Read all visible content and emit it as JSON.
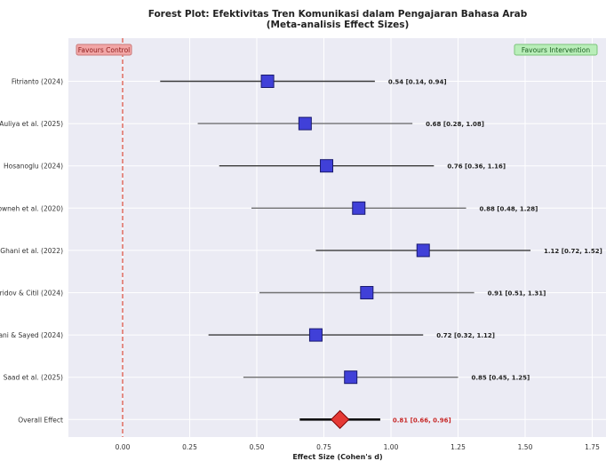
{
  "chart_data": {
    "type": "forest",
    "title": "Forest Plot: Efektivitas Tren Komunikasi dalam Pengajaran Bahasa Arab",
    "subtitle": "(Meta-analisis Effect Sizes)",
    "xlabel": "Effect Size (Cohen's d)",
    "xlim": [
      -0.2,
      1.8
    ],
    "xticks": [
      0.0,
      0.25,
      0.5,
      0.75,
      1.0,
      1.25,
      1.5,
      1.75
    ],
    "xtick_labels": [
      "0.00",
      "0.25",
      "0.50",
      "0.75",
      "1.00",
      "1.25",
      "1.50",
      "1.75"
    ],
    "reference_line": 0.0,
    "grid": true,
    "favours_left": "Favours Control",
    "favours_right": "Favours Intervention",
    "studies": [
      {
        "label": "Fitrianto (2024)",
        "effect": 0.54,
        "ci": [
          0.14,
          0.94
        ],
        "value_label": "0.54 [0.14, 0.94]"
      },
      {
        "label": "Auliya et al. (2025)",
        "effect": 0.68,
        "ci": [
          0.28,
          1.08
        ],
        "value_label": "0.68 [0.28, 1.08]"
      },
      {
        "label": "Hosanoglu (2024)",
        "effect": 0.76,
        "ci": [
          0.36,
          1.16
        ],
        "value_label": "0.76 [0.36, 1.16]"
      },
      {
        "label": "owneh et al. (2020)",
        "effect": 0.88,
        "ci": [
          0.48,
          1.28
        ],
        "value_label": "0.88 [0.48, 1.28]"
      },
      {
        "label": "Ghani et al. (2022)",
        "effect": 1.12,
        "ci": [
          0.72,
          1.52
        ],
        "value_label": "1.12 [0.72, 1.52]"
      },
      {
        "label": "ridov & Citil (2024)",
        "effect": 0.91,
        "ci": [
          0.51,
          1.31
        ],
        "value_label": "0.91 [0.51, 1.31]"
      },
      {
        "label": "ani & Sayed (2024)",
        "effect": 0.72,
        "ci": [
          0.32,
          1.12
        ],
        "value_label": "0.72 [0.32, 1.12]"
      },
      {
        "label": "Saad et al. (2025)",
        "effect": 0.85,
        "ci": [
          0.45,
          1.25
        ],
        "value_label": "0.85 [0.45, 1.25]"
      }
    ],
    "overall": {
      "label": "Overall Effect",
      "effect": 0.81,
      "ci": [
        0.66,
        0.96
      ],
      "value_label": "0.81 [0.66, 0.96]"
    },
    "colors": {
      "marker": "#4040d8",
      "marker_edge": "#1a1a6e",
      "overall": "#e53935",
      "overall_edge": "#7a0000",
      "reference": "#e05a4a",
      "plot_bg": "#ebebf4",
      "grid": "#ffffff",
      "fav_left_bg": "#f2a6a6",
      "fav_left_text": "#8b1a1a",
      "fav_right_bg": "#b9eeb9",
      "fav_right_text": "#1b5e20"
    }
  }
}
